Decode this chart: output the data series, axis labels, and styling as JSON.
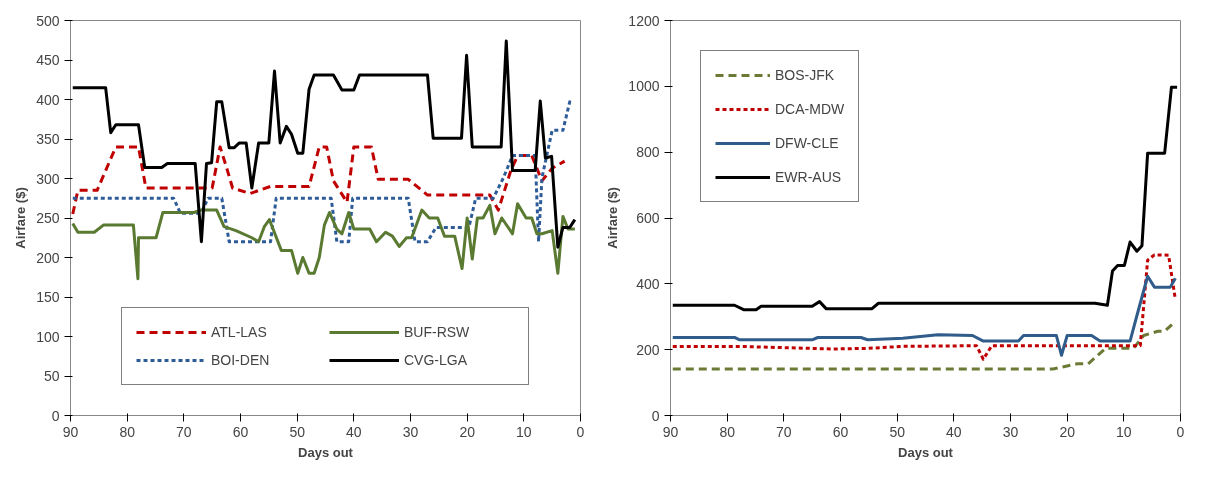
{
  "chart_data": [
    {
      "type": "line",
      "xlabel": "Days out",
      "ylabel": "Airfare ($)",
      "xlim": [
        90,
        0
      ],
      "xticks": [
        90,
        80,
        70,
        60,
        50,
        40,
        30,
        20,
        10,
        0
      ],
      "ylim": [
        0,
        500
      ],
      "yticks": [
        0,
        50,
        100,
        150,
        200,
        250,
        300,
        350,
        400,
        450,
        500
      ],
      "legend": "bottom",
      "series": [
        {
          "name": "ATL-LAS",
          "color": "#c00000",
          "line_style": "dashed",
          "x": [
            89.6,
            88.7,
            85.3,
            82,
            78,
            76.7,
            65,
            63.6,
            62.3,
            61.4,
            58.3,
            54.7,
            47.9,
            46.1,
            44.8,
            43.6,
            41.2,
            40,
            36.9,
            35.7,
            30.4,
            27,
            16,
            14.5,
            12.3,
            11.1,
            8.6,
            6.8,
            5,
            2.8
          ],
          "values": [
            255,
            285,
            285,
            340,
            340,
            288,
            288,
            340,
            310,
            288,
            281,
            290,
            290,
            340,
            340,
            297,
            270,
            340,
            340,
            299,
            299,
            279,
            279,
            260,
            310,
            329,
            329,
            297,
            313,
            322
          ]
        },
        {
          "name": "BOI-DEN",
          "color": "#2e5c99",
          "line_style": "dotted",
          "x": [
            89.6,
            71.8,
            70.6,
            67,
            65.7,
            63.3,
            62,
            54.7,
            53.7,
            44,
            43,
            40.9,
            40.2,
            30.4,
            29.2,
            27,
            25.5,
            19.7,
            18.5,
            15.4,
            13.6,
            12,
            8,
            7.4,
            6.8,
            5,
            3.1,
            1.9,
            1.3
          ],
          "values": [
            275,
            275,
            256,
            256,
            275,
            275,
            220,
            220,
            275,
            275,
            220,
            220,
            275,
            275,
            220,
            220,
            238,
            238,
            275,
            275,
            301,
            329,
            329,
            220,
            301,
            361,
            361,
            397,
            395
          ]
        },
        {
          "name": "BUF-RSW",
          "color": "#5a7a32",
          "line_style": "solid",
          "x": [
            89.6,
            88.7,
            85.8,
            84.2,
            78.9,
            78.1,
            78,
            74.9,
            73.7,
            68.2,
            67,
            64.2,
            62.9,
            60.8,
            58,
            56.8,
            55.8,
            54.9,
            52.8,
            51,
            49.9,
            49,
            47.9,
            47,
            46.1,
            45.2,
            44.3,
            43,
            42.1,
            40.9,
            40,
            37.2,
            36,
            34.4,
            33.2,
            32,
            30.7,
            29.8,
            28,
            26.7,
            25.2,
            24,
            22.2,
            20.9,
            20,
            19.1,
            18.2,
            17.2,
            16,
            15.1,
            13.9,
            12,
            11.1,
            9.6,
            8.6,
            7.7,
            6.8,
            5,
            4,
            3.1,
            2.2,
            1
          ],
          "values": [
            243,
            232,
            232,
            241,
            241,
            173,
            225,
            225,
            257,
            257,
            260,
            260,
            239,
            234,
            225,
            220,
            239,
            248,
            209,
            209,
            180,
            200,
            180,
            180,
            200,
            241,
            257,
            236,
            230,
            257,
            236,
            236,
            220,
            232,
            227,
            214,
            225,
            225,
            260,
            250,
            250,
            227,
            227,
            186,
            250,
            198,
            250,
            250,
            266,
            230,
            250,
            230,
            268,
            250,
            250,
            230,
            230,
            234,
            180,
            252,
            236,
            236
          ]
        },
        {
          "name": "CVG-LGA",
          "color": "#000000",
          "line_style": "solid",
          "x": [
            89.6,
            83.8,
            82.9,
            82,
            78,
            76.9,
            73.9,
            72.9,
            68,
            66.9,
            66,
            65.1,
            64.2,
            63.3,
            62,
            61.1,
            60.2,
            59,
            58,
            56.8,
            55,
            54,
            53,
            51.9,
            51,
            49.9,
            49,
            47.9,
            47,
            43.6,
            42.1,
            40,
            39,
            27,
            26,
            21,
            20.1,
            19.1,
            14,
            13.1,
            12,
            8,
            7.1,
            6.2,
            5.1,
            4,
            3.1,
            1.9,
            1
          ],
          "values": [
            415,
            415,
            358,
            368,
            368,
            314,
            314,
            319,
            319,
            220,
            319,
            320,
            397,
            397,
            339,
            339,
            345,
            345,
            288,
            345,
            345,
            436,
            345,
            366,
            356,
            332,
            332,
            413,
            431,
            431,
            412,
            412,
            431,
            431,
            351,
            351,
            456,
            340,
            340,
            474,
            310,
            310,
            398,
            326,
            328,
            213,
            238,
            238,
            248
          ]
        }
      ]
    },
    {
      "type": "line",
      "xlabel": "Days out",
      "ylabel": "Airfare ($)",
      "xlim": [
        90,
        0
      ],
      "xticks": [
        90,
        80,
        70,
        60,
        50,
        40,
        30,
        20,
        10,
        0
      ],
      "ylim": [
        0,
        1200
      ],
      "yticks": [
        0,
        200,
        400,
        600,
        800,
        1000,
        1200
      ],
      "legend": "top left",
      "series": [
        {
          "name": "BOS-JFK",
          "color": "#6b7a35",
          "line_style": "dashed",
          "x": [
            89.6,
            22.5,
            18.2,
            16.3,
            13.2,
            8.3,
            6.5,
            4,
            2.8,
            0.9
          ],
          "values": [
            141,
            141,
            157,
            157,
            204,
            204,
            243,
            256,
            256,
            286
          ]
        },
        {
          "name": "DCA-MDW",
          "color": "#c00000",
          "line_style": "dotted",
          "x": [
            89.6,
            78,
            61.3,
            55.2,
            49,
            36,
            34.8,
            33.3,
            7.1,
            5.8,
            4.6,
            2.1,
            0.9
          ],
          "values": [
            210,
            210,
            202,
            204,
            210,
            212,
            171,
            212,
            212,
            472,
            488,
            487,
            352
          ]
        },
        {
          "name": "DFW-CLE",
          "color": "#2f5c8a",
          "line_style": "solid",
          "x": [
            89.6,
            78.7,
            77.8,
            65,
            64,
            56.4,
            55.2,
            49,
            42.8,
            36.7,
            34.8,
            28.6,
            27.7,
            21.9,
            21,
            20,
            15.7,
            14.2,
            8.9,
            7.7,
            5.8,
            4.6,
            1.8,
            0.9
          ],
          "values": [
            237,
            237,
            230,
            230,
            237,
            237,
            230,
            235,
            245,
            243,
            226,
            226,
            243,
            243,
            183,
            243,
            243,
            226,
            226,
            303,
            423,
            390,
            390,
            417
          ]
        },
        {
          "name": "EWR-AUS",
          "color": "#000000",
          "line_style": "solid",
          "x": [
            89.6,
            78.7,
            77,
            74.9,
            74,
            65,
            63.7,
            62.5,
            54.5,
            53.3,
            15.1,
            12.9,
            12,
            11.1,
            9.9,
            8.9,
            7.7,
            6.8,
            5.8,
            2.8,
            1.6,
            0.6
          ],
          "values": [
            335,
            335,
            321,
            321,
            332,
            332,
            346,
            324,
            324,
            341,
            341,
            335,
            439,
            456,
            456,
            527,
            499,
            516,
            797,
            797,
            997,
            997
          ]
        }
      ]
    }
  ]
}
